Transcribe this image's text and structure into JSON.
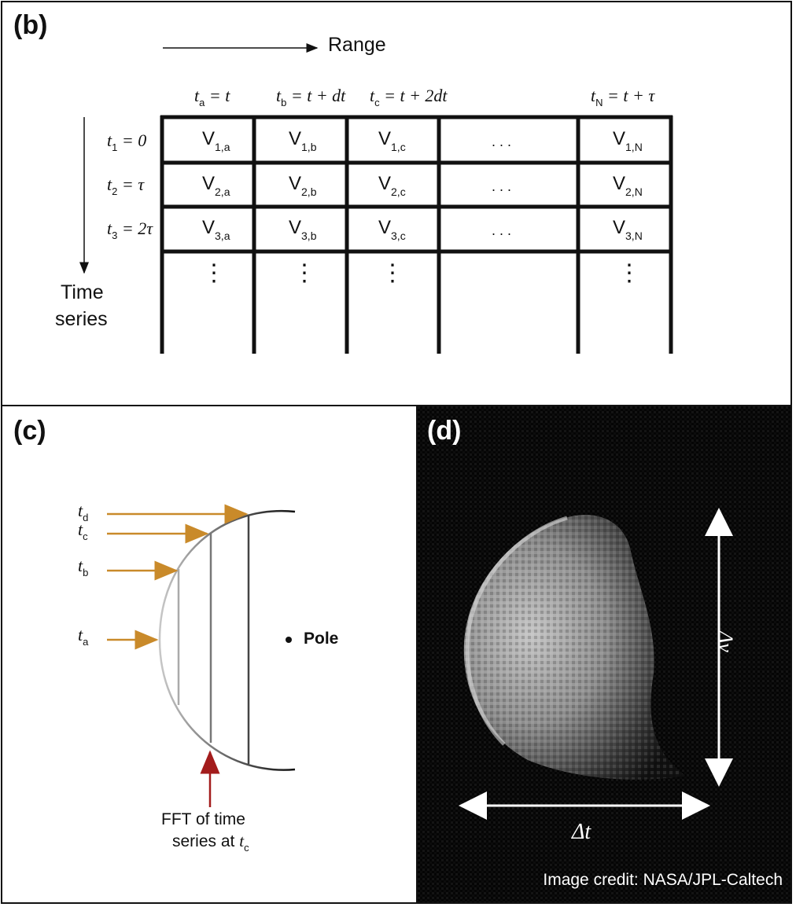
{
  "panel_b": {
    "label": "(b)",
    "range_label": "Range",
    "time_series_label": [
      "Time",
      "series"
    ],
    "columns": [
      {
        "t": "t",
        "sub": "a",
        "rhs": " = t"
      },
      {
        "t": "t",
        "sub": "b",
        "rhs": " = t + dt"
      },
      {
        "t": "t",
        "sub": "c",
        "rhs": " = t + 2dt"
      },
      {
        "t": "t",
        "sub": "N",
        "rhs": " = t + τ"
      }
    ],
    "rows": [
      {
        "t": "t",
        "sub": "1",
        "rhs": " = 0"
      },
      {
        "t": "t",
        "sub": "2",
        "rhs": " = τ"
      },
      {
        "t": "t",
        "sub": "3",
        "rhs": " = 2τ"
      }
    ],
    "cells": [
      [
        "V",
        "1,a",
        "V",
        "1,b",
        "V",
        "1,c",
        ". . .",
        "V",
        "1,N"
      ],
      [
        "V",
        "2,a",
        "V",
        "2,b",
        "V",
        "2,c",
        ". . .",
        "V",
        "2,N"
      ],
      [
        "V",
        "3,a",
        "V",
        "3,b",
        "V",
        "3,c",
        ". . .",
        "V",
        "3,N"
      ]
    ],
    "vdots": "⋮"
  },
  "panel_c": {
    "label": "(c)",
    "t_labels": [
      {
        "t": "t",
        "sub": "d"
      },
      {
        "t": "t",
        "sub": "c"
      },
      {
        "t": "t",
        "sub": "b"
      },
      {
        "t": "t",
        "sub": "a"
      }
    ],
    "pole_label": "Pole",
    "fft_caption_line1": "FFT of time",
    "fft_caption_line2": "series at",
    "fft_caption_t": "t",
    "fft_caption_sub": "c",
    "colors": {
      "arrow_orange": "#c98a2a",
      "arrow_red": "#a31c1c"
    }
  },
  "panel_d": {
    "label": "(d)",
    "delta_v": "Δν",
    "delta_t": "Δt",
    "credit": "Image credit: NASA/JPL-Caltech"
  }
}
